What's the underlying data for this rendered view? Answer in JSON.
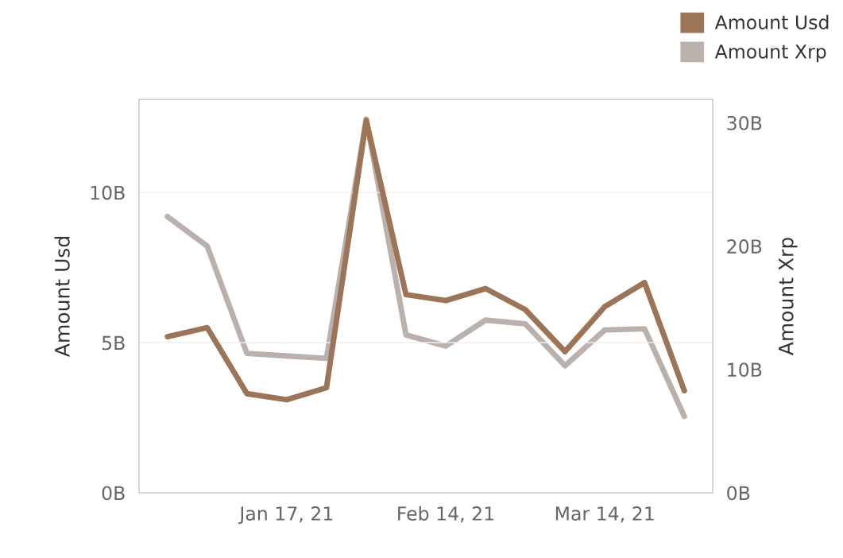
{
  "chart_data": {
    "type": "line",
    "x": [
      "2020-12-27",
      "2021-01-03",
      "2021-01-10",
      "2021-01-17",
      "2021-01-24",
      "2021-01-31",
      "2021-02-07",
      "2021-02-14",
      "2021-02-21",
      "2021-02-28",
      "2021-03-07",
      "2021-03-14",
      "2021-03-21",
      "2021-03-28"
    ],
    "series": [
      {
        "name": "Amount Usd",
        "color": "#9c7457",
        "values": [
          5.2,
          5.5,
          3.3,
          3.1,
          3.5,
          12.4,
          6.6,
          6.4,
          6.8,
          6.1,
          4.7,
          6.2,
          7.0,
          3.4
        ]
      },
      {
        "name": "Amount Xrp",
        "color": "#bab0ac",
        "axis": "y2",
        "values": [
          22.4,
          20.0,
          11.3,
          11.1,
          10.9,
          30.3,
          12.8,
          11.9,
          14.0,
          13.7,
          10.3,
          13.2,
          13.3,
          6.2
        ]
      }
    ],
    "ylabel": "Amount Usd",
    "y2label": "Amount Xrp",
    "ylim": [
      0,
      13.1
    ],
    "yticks": [
      {
        "value": 0,
        "label": "0B"
      },
      {
        "value": 5,
        "label": "5B"
      },
      {
        "value": 10,
        "label": "10B"
      }
    ],
    "y2lim": [
      0,
      31.9
    ],
    "y2ticks": [
      {
        "value": 0,
        "label": "0B"
      },
      {
        "value": 10,
        "label": "10B"
      },
      {
        "value": 20,
        "label": "20B"
      },
      {
        "value": 30,
        "label": "30B"
      }
    ],
    "xlim": [
      "2020-12-22",
      "2021-04-02"
    ],
    "xticks": [
      {
        "value": "2021-01-17",
        "label": "Jan 17, 21"
      },
      {
        "value": "2021-02-14",
        "label": "Feb 14, 21"
      },
      {
        "value": "2021-03-14",
        "label": "Mar 14, 21"
      }
    ],
    "grid": "y",
    "legend": "top right",
    "marker": "none",
    "line_style": "solid"
  }
}
